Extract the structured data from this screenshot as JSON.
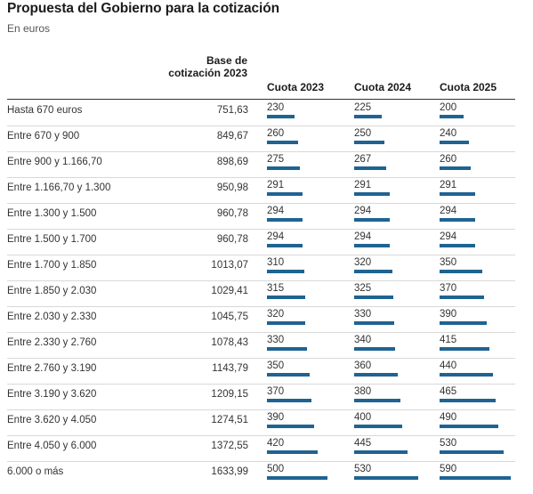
{
  "title": "Propuesta del Gobierno para la cotización",
  "subtitle": "En euros",
  "headers": {
    "tramo": "",
    "base": "Base de cotización 2023",
    "cuota2023": "Cuota 2023",
    "cuota2024": "Cuota 2024",
    "cuota2025": "Cuota 2025"
  },
  "colors": {
    "bar": "#1f6392",
    "rule": "#333333",
    "separator": "#d8d8d8"
  },
  "chart_data": {
    "type": "table",
    "bar_max": 590,
    "columns": [
      "",
      "Base de cotización 2023",
      "Cuota 2023",
      "Cuota 2024",
      "Cuota 2025"
    ],
    "rows": [
      {
        "tramo": "Hasta 670 euros",
        "base": "751,63",
        "c2023": 230,
        "c2024": 225,
        "c2025": 200
      },
      {
        "tramo": "Entre 670 y 900",
        "base": "849,67",
        "c2023": 260,
        "c2024": 250,
        "c2025": 240
      },
      {
        "tramo": "Entre 900 y 1.166,70",
        "base": "898,69",
        "c2023": 275,
        "c2024": 267,
        "c2025": 260
      },
      {
        "tramo": "Entre 1.166,70 y 1.300",
        "base": "950,98",
        "c2023": 291,
        "c2024": 291,
        "c2025": 291
      },
      {
        "tramo": "Entre 1.300 y 1.500",
        "base": "960,78",
        "c2023": 294,
        "c2024": 294,
        "c2025": 294
      },
      {
        "tramo": "Entre 1.500 y 1.700",
        "base": "960,78",
        "c2023": 294,
        "c2024": 294,
        "c2025": 294
      },
      {
        "tramo": "Entre 1.700 y 1.850",
        "base": "1013,07",
        "c2023": 310,
        "c2024": 320,
        "c2025": 350
      },
      {
        "tramo": "Entre 1.850 y 2.030",
        "base": "1029,41",
        "c2023": 315,
        "c2024": 325,
        "c2025": 370
      },
      {
        "tramo": "Entre 2.030 y 2.330",
        "base": "1045,75",
        "c2023": 320,
        "c2024": 330,
        "c2025": 390
      },
      {
        "tramo": "Entre 2.330 y 2.760",
        "base": "1078,43",
        "c2023": 330,
        "c2024": 340,
        "c2025": 415
      },
      {
        "tramo": "Entre 2.760 y 3.190",
        "base": "1143,79",
        "c2023": 350,
        "c2024": 360,
        "c2025": 440
      },
      {
        "tramo": "Entre 3.190 y 3.620",
        "base": "1209,15",
        "c2023": 370,
        "c2024": 380,
        "c2025": 465
      },
      {
        "tramo": "Entre 3.620 y 4.050",
        "base": "1274,51",
        "c2023": 390,
        "c2024": 400,
        "c2025": 490
      },
      {
        "tramo": "Entre 4.050 y 6.000",
        "base": "1372,55",
        "c2023": 420,
        "c2024": 445,
        "c2025": 530
      },
      {
        "tramo": "6.000 o más",
        "base": "1633,99",
        "c2023": 500,
        "c2024": 530,
        "c2025": 590
      }
    ]
  }
}
